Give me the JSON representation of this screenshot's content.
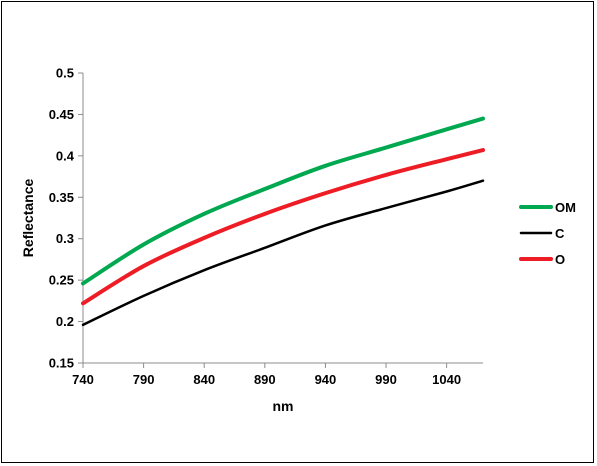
{
  "chart_data": {
    "type": "line",
    "title": "",
    "xlabel": "nm",
    "ylabel": "Reflectance",
    "xlim": [
      740,
      1070
    ],
    "ylim": [
      0.15,
      0.5
    ],
    "xticks": [
      740,
      790,
      840,
      890,
      940,
      990,
      1040
    ],
    "xtick_labels": [
      "740",
      "790",
      "840",
      "890",
      "940",
      "990",
      "1040"
    ],
    "yticks": [
      0.15,
      0.2,
      0.25,
      0.3,
      0.35,
      0.4,
      0.45,
      0.5
    ],
    "ytick_labels": [
      "0.15",
      "0.2",
      "0.25",
      "0.3",
      "0.35",
      "0.4",
      "0.45",
      "0.5"
    ],
    "grid": false,
    "legend_position": "right",
    "series": [
      {
        "name": "OM",
        "color": "#00a850",
        "x": [
          740,
          790,
          840,
          890,
          940,
          990,
          1040,
          1070
        ],
        "y": [
          0.246,
          0.293,
          0.33,
          0.36,
          0.388,
          0.41,
          0.432,
          0.445
        ]
      },
      {
        "name": "C",
        "color": "#000000",
        "x": [
          740,
          790,
          840,
          890,
          940,
          990,
          1040,
          1070
        ],
        "y": [
          0.196,
          0.231,
          0.262,
          0.289,
          0.316,
          0.337,
          0.357,
          0.37
        ]
      },
      {
        "name": "O",
        "color": "#ee1c25",
        "x": [
          740,
          790,
          840,
          890,
          940,
          990,
          1040,
          1070
        ],
        "y": [
          0.222,
          0.267,
          0.301,
          0.33,
          0.355,
          0.377,
          0.396,
          0.407
        ]
      }
    ]
  }
}
